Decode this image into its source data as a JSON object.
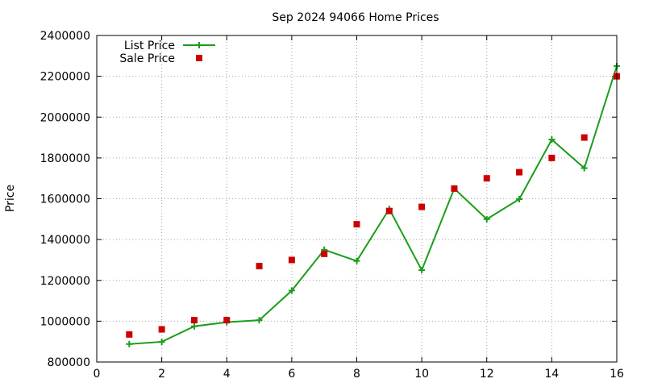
{
  "chart_data": {
    "type": "line",
    "title": "Sep 2024 94066 Home Prices",
    "xlabel": "",
    "ylabel": "Price",
    "xlim": [
      0,
      16
    ],
    "ylim": [
      800000,
      2400000
    ],
    "xticks": [
      0,
      2,
      4,
      6,
      8,
      10,
      12,
      14,
      16
    ],
    "yticks": [
      800000,
      1000000,
      1200000,
      1400000,
      1600000,
      1800000,
      2000000,
      2200000,
      2400000
    ],
    "grid": true,
    "legend_position": "top-left",
    "x": [
      1,
      2,
      3,
      4,
      5,
      6,
      7,
      8,
      9,
      10,
      11,
      12,
      13,
      14,
      15,
      16
    ],
    "series": [
      {
        "name": "List Price",
        "style": "line+cross",
        "color": "#1a9e1a",
        "values": [
          888000,
          899000,
          975000,
          995000,
          1005000,
          1150000,
          1350000,
          1295000,
          1550000,
          1250000,
          1650000,
          1500000,
          1598000,
          1890000,
          1750000,
          2250000
        ]
      },
      {
        "name": "Sale Price",
        "style": "square",
        "color": "#cc0000",
        "values": [
          935000,
          960000,
          1005000,
          1005000,
          1270000,
          1300000,
          1330000,
          1475000,
          1540000,
          1560000,
          1650000,
          1700000,
          1730000,
          1800000,
          1900000,
          2200000
        ]
      }
    ]
  }
}
